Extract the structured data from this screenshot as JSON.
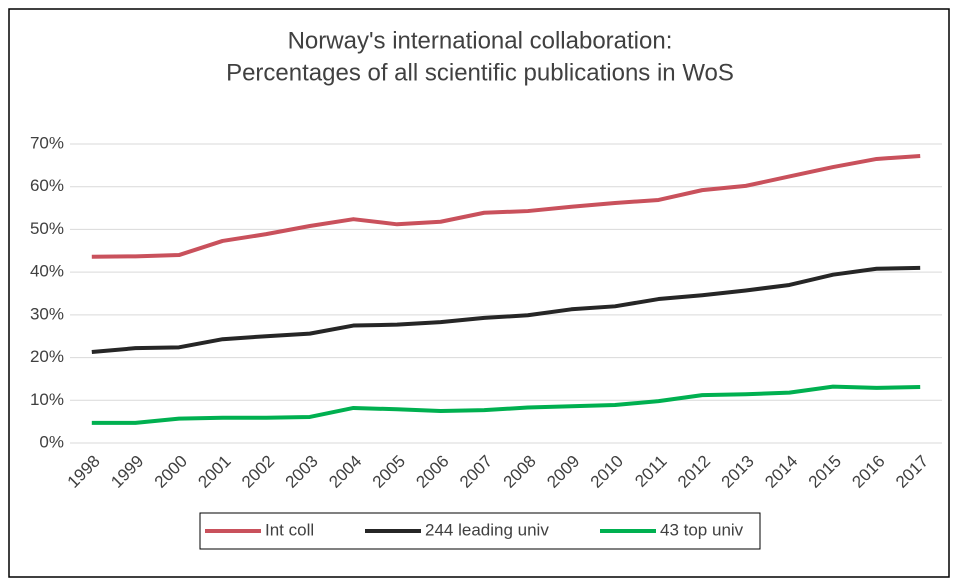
{
  "chart_data": {
    "type": "line",
    "title": [
      "Norway's international collaboration:",
      "Percentages of all scientific publications in WoS"
    ],
    "categories": [
      "1998",
      "1999",
      "2000",
      "2001",
      "2002",
      "2003",
      "2004",
      "2005",
      "2006",
      "2007",
      "2008",
      "2009",
      "2010",
      "2011",
      "2012",
      "2013",
      "2014",
      "2015",
      "2016",
      "2017"
    ],
    "series": [
      {
        "name": "Int coll",
        "color": "#c9515c",
        "values": [
          43.6,
          43.7,
          44.0,
          47.3,
          48.9,
          50.8,
          52.4,
          51.2,
          51.8,
          53.9,
          54.3,
          55.3,
          56.2,
          56.9,
          59.2,
          60.2,
          62.4,
          64.6,
          66.5,
          67.2
        ]
      },
      {
        "name": "244 leading univ",
        "color": "#262626",
        "values": [
          21.3,
          22.2,
          22.4,
          24.3,
          25.0,
          25.6,
          27.5,
          27.7,
          28.3,
          29.3,
          29.9,
          31.3,
          32.0,
          33.7,
          34.6,
          35.7,
          37.0,
          39.4,
          40.8,
          41.0
        ]
      },
      {
        "name": "43 top univ",
        "color": "#00b050",
        "values": [
          4.7,
          4.7,
          5.7,
          5.9,
          5.9,
          6.1,
          8.2,
          7.9,
          7.5,
          7.7,
          8.3,
          8.6,
          8.9,
          9.8,
          11.2,
          11.4,
          11.8,
          13.2,
          12.9,
          13.1
        ]
      }
    ],
    "ylim": [
      0,
      70
    ],
    "yticks": [
      {
        "value": 0,
        "label": "0%"
      },
      {
        "value": 10,
        "label": "10%"
      },
      {
        "value": 20,
        "label": "20%"
      },
      {
        "value": 30,
        "label": "30%"
      },
      {
        "value": 40,
        "label": "40%"
      },
      {
        "value": 50,
        "label": "50%"
      },
      {
        "value": 60,
        "label": "60%"
      },
      {
        "value": 70,
        "label": "70%"
      }
    ],
    "grid": true,
    "legend": "bottom"
  }
}
